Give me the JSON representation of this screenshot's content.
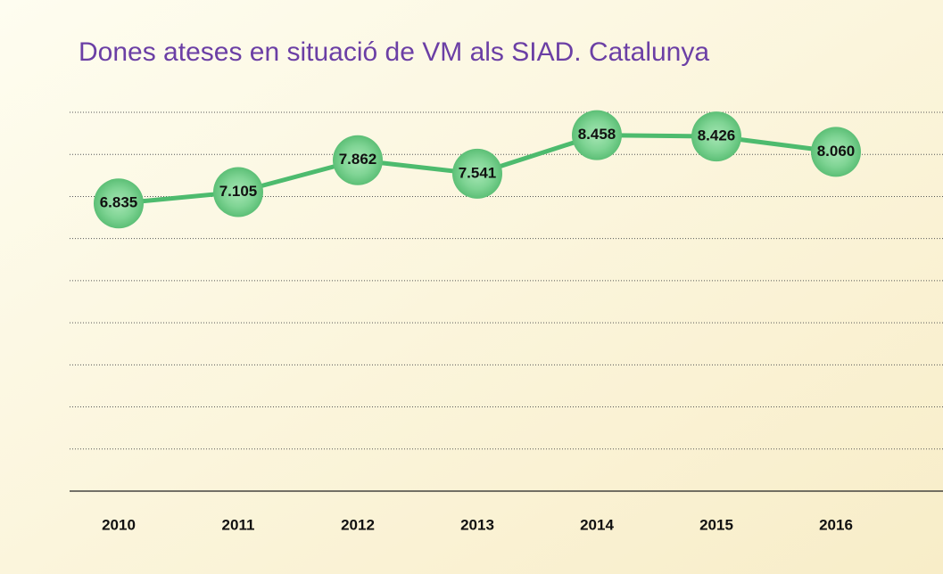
{
  "chart_data": {
    "type": "line",
    "title": "Dones ateses en situació de VM als SIAD. Catalunya",
    "categories": [
      "2010",
      "2011",
      "2012",
      "2013",
      "2014",
      "2015",
      "2016"
    ],
    "series": [
      {
        "name": "Dones ateses",
        "color": "#4dbb6e",
        "values": [
          6835,
          7105,
          7862,
          7541,
          8458,
          8426,
          8060
        ],
        "value_labels": [
          "6.835",
          "7.105",
          "7.862",
          "7.541",
          "8.458",
          "8.426",
          "8.060"
        ]
      }
    ],
    "ylim": [
      0,
      9000
    ],
    "yticks": [
      0,
      1000,
      2000,
      3000,
      4000,
      5000,
      6000,
      7000,
      8000,
      9000
    ],
    "grid": true
  }
}
